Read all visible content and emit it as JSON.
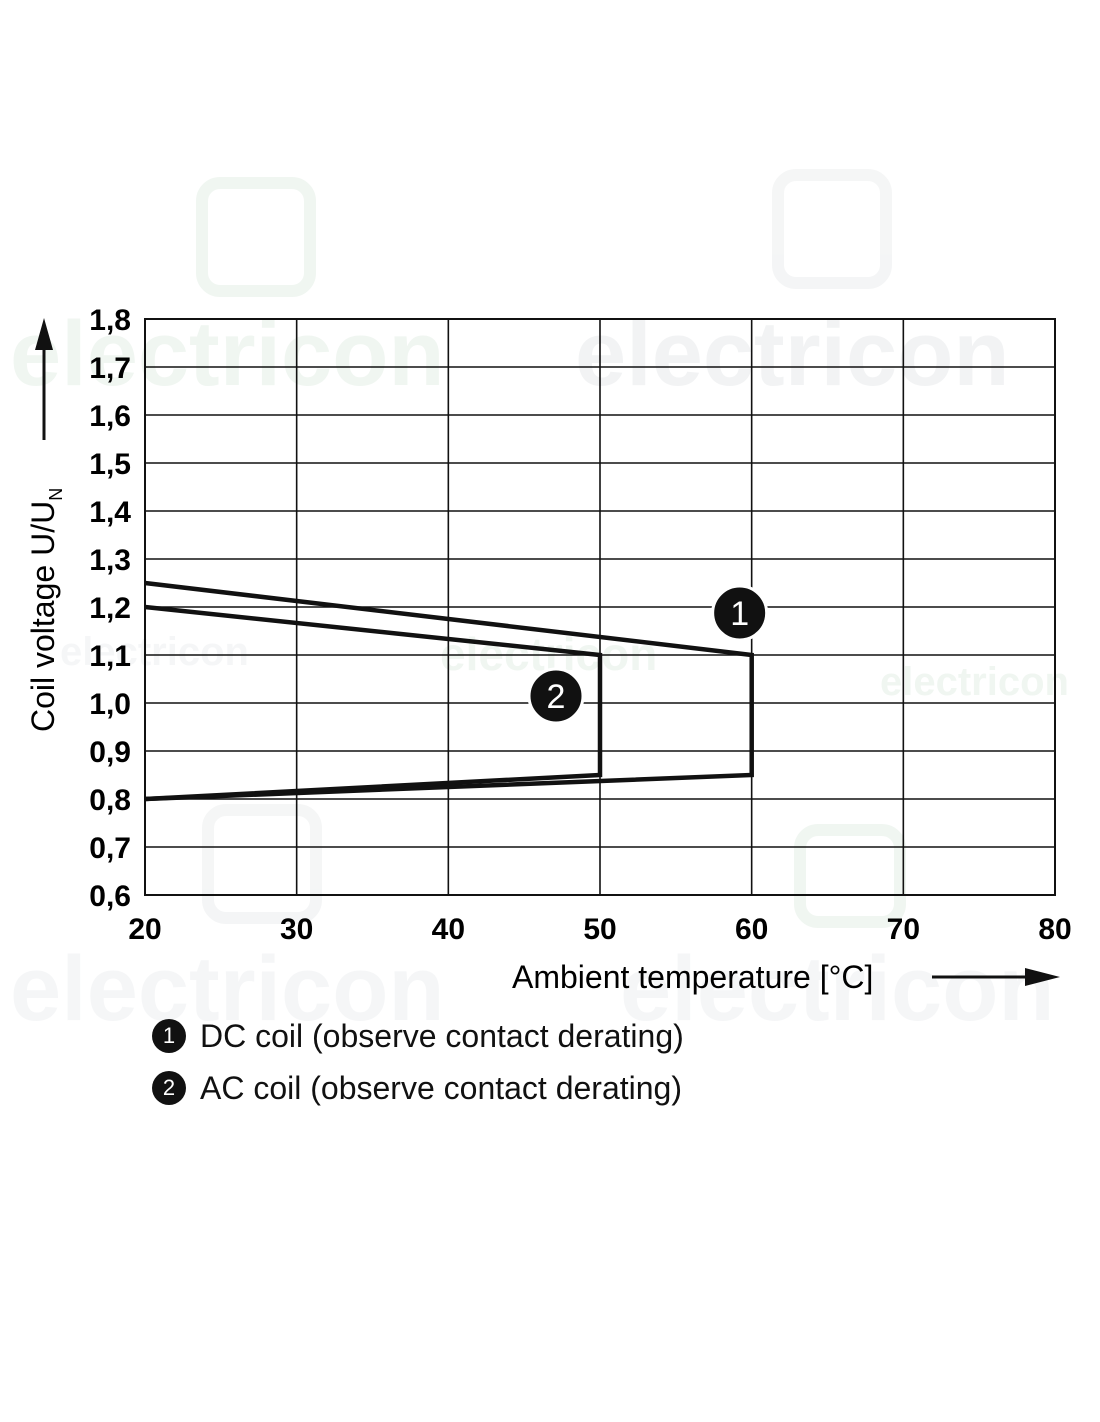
{
  "chart_data": {
    "type": "line",
    "xlabel": "Ambient temperature [°C]",
    "ylabel_main": "Coil voltage U/U",
    "ylabel_sub": "N",
    "xlim": [
      20,
      80
    ],
    "ylim": [
      0.6,
      1.8
    ],
    "x_ticks": [
      20,
      30,
      40,
      50,
      60,
      70,
      80
    ],
    "y_ticks": [
      "0,6",
      "0,7",
      "0,8",
      "0,9",
      "1,0",
      "1,1",
      "1,2",
      "1,3",
      "1,4",
      "1,5",
      "1,6",
      "1,7",
      "1,8"
    ],
    "grid": true,
    "series": [
      {
        "name": "DC coil (observe contact derating)",
        "marker": "1",
        "upper": {
          "x": [
            20,
            60
          ],
          "y": [
            1.25,
            1.1
          ]
        },
        "lower": {
          "x": [
            20,
            60
          ],
          "y": [
            0.8,
            0.85
          ]
        }
      },
      {
        "name": "AC coil (observe contact derating)",
        "marker": "2",
        "upper": {
          "x": [
            20,
            50
          ],
          "y": [
            1.2,
            1.1
          ]
        },
        "lower": {
          "x": [
            20,
            50
          ],
          "y": [
            0.8,
            0.85
          ]
        }
      }
    ]
  },
  "legend": [
    {
      "marker": "1",
      "label": "DC coil (observe contact derating)"
    },
    {
      "marker": "2",
      "label": "AC coil (observe contact derating)"
    }
  ],
  "colors": {
    "line": "#111111",
    "grid": "#111111",
    "watermark": "#e8f3ea"
  },
  "watermark_text": "electricon"
}
